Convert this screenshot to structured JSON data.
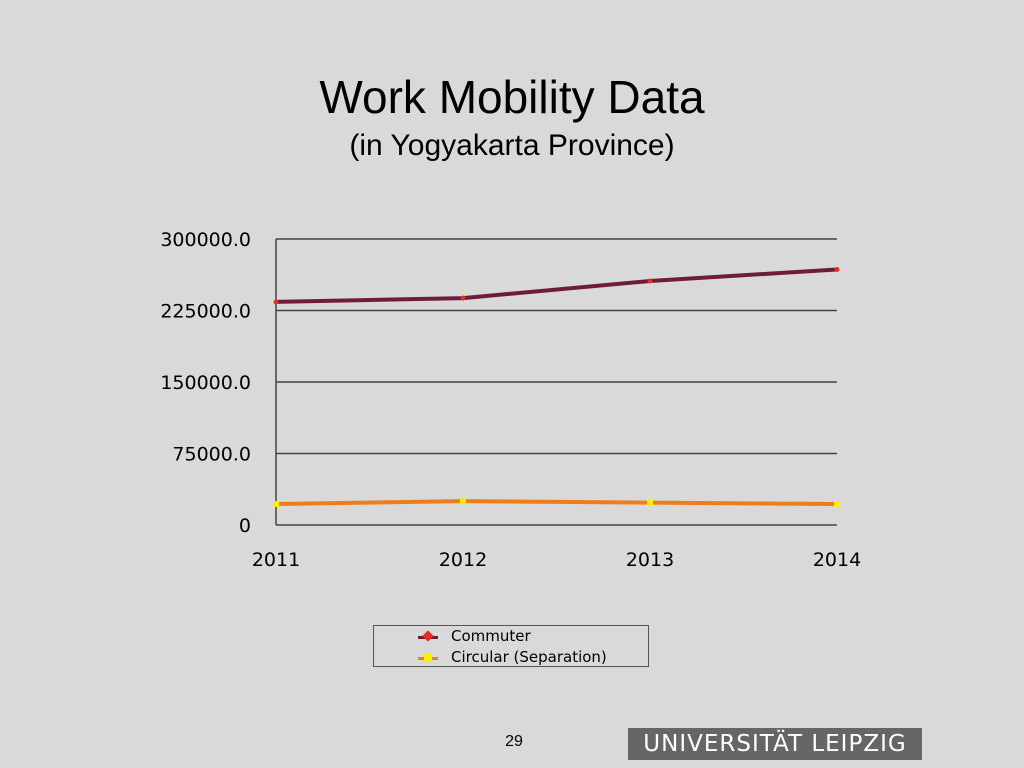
{
  "slide": {
    "title": "Work Mobility Data",
    "subtitle": "(in Yogyakarta Province)",
    "page_number": "29",
    "logo_text": "UNIVERSITÄT LEIPZIG"
  },
  "chart_data": {
    "type": "line",
    "x": [
      "2011",
      "2012",
      "2013",
      "2014"
    ],
    "series": [
      {
        "name": "Commuter",
        "values": [
          234000,
          238000,
          256000,
          268000
        ],
        "color": "#6e1c3a",
        "marker_color": "#e0301e"
      },
      {
        "name": "Circular (Separation)",
        "values": [
          22000,
          25000,
          23500,
          22000
        ],
        "color": "#ef7d1a",
        "marker_color": "#ffee00"
      }
    ],
    "y_ticks": [
      {
        "value": 0,
        "label": "0"
      },
      {
        "value": 75000,
        "label": "75000.0"
      },
      {
        "value": 150000,
        "label": "150000.0"
      },
      {
        "value": 225000,
        "label": "225000.0"
      },
      {
        "value": 300000,
        "label": "300000.0"
      }
    ],
    "ylim": [
      0,
      300000
    ],
    "grid": true,
    "legend_position": "bottom"
  }
}
